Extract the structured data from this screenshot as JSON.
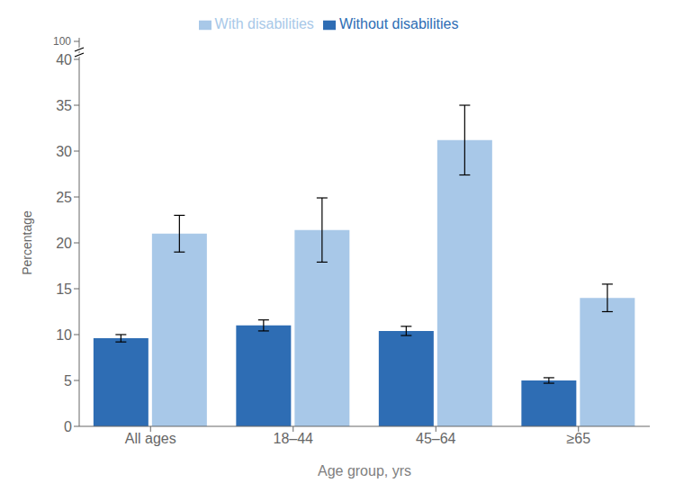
{
  "chart_data": {
    "type": "bar",
    "categories": [
      "All ages",
      "18–44",
      "45–64",
      "≥65"
    ],
    "series": [
      {
        "name": "Without disabilities",
        "color": "#2E6DB4",
        "values": [
          9.6,
          11.0,
          10.4,
          5.0
        ],
        "errors": [
          0.4,
          0.6,
          0.5,
          0.3
        ]
      },
      {
        "name": "With disabilities",
        "color": "#A8C8E8",
        "values": [
          21.0,
          21.4,
          31.2,
          14.0
        ],
        "errors": [
          2.0,
          3.5,
          3.8,
          1.5
        ]
      }
    ],
    "xlabel": "Age group, yrs",
    "ylabel": "Percentage",
    "ylim": [
      0,
      40
    ],
    "yticks": [
      0,
      5,
      10,
      15,
      20,
      25,
      30,
      35,
      40
    ],
    "grid": false,
    "legend": "upper center",
    "annotations": [
      "100"
    ]
  }
}
